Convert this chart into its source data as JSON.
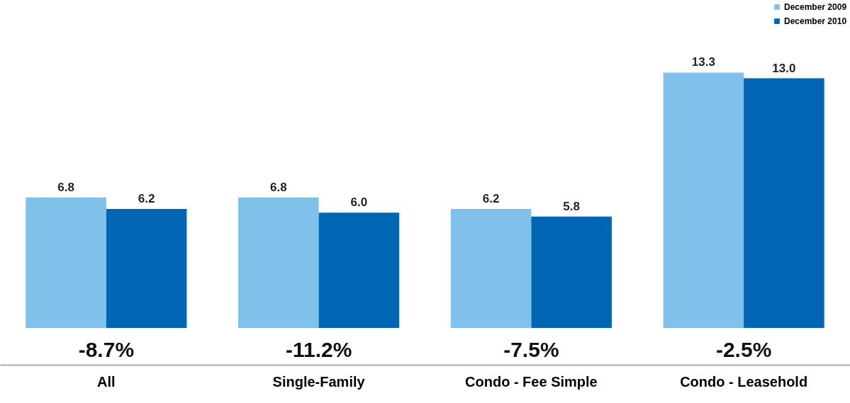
{
  "chart_data": {
    "type": "bar",
    "categories": [
      "All",
      "Single-Family",
      "Condo - Fee Simple",
      "Condo - Leasehold"
    ],
    "series": [
      {
        "name": "December 2009",
        "color": "#7fc1ea",
        "values": [
          6.8,
          6.8,
          6.2,
          13.3
        ],
        "value_labels": [
          "6.8",
          "6.8",
          "6.2",
          "13.3"
        ]
      },
      {
        "name": "December 2010",
        "color": "#0066b3",
        "values": [
          6.2,
          6.0,
          5.8,
          13.0
        ],
        "value_labels": [
          "6.2",
          "6.0",
          "5.8",
          "13.0"
        ]
      }
    ],
    "legend": "top right",
    "annotations": [
      "-8.7%",
      "-11.2%",
      "-7.5%",
      "-2.5%"
    ]
  }
}
